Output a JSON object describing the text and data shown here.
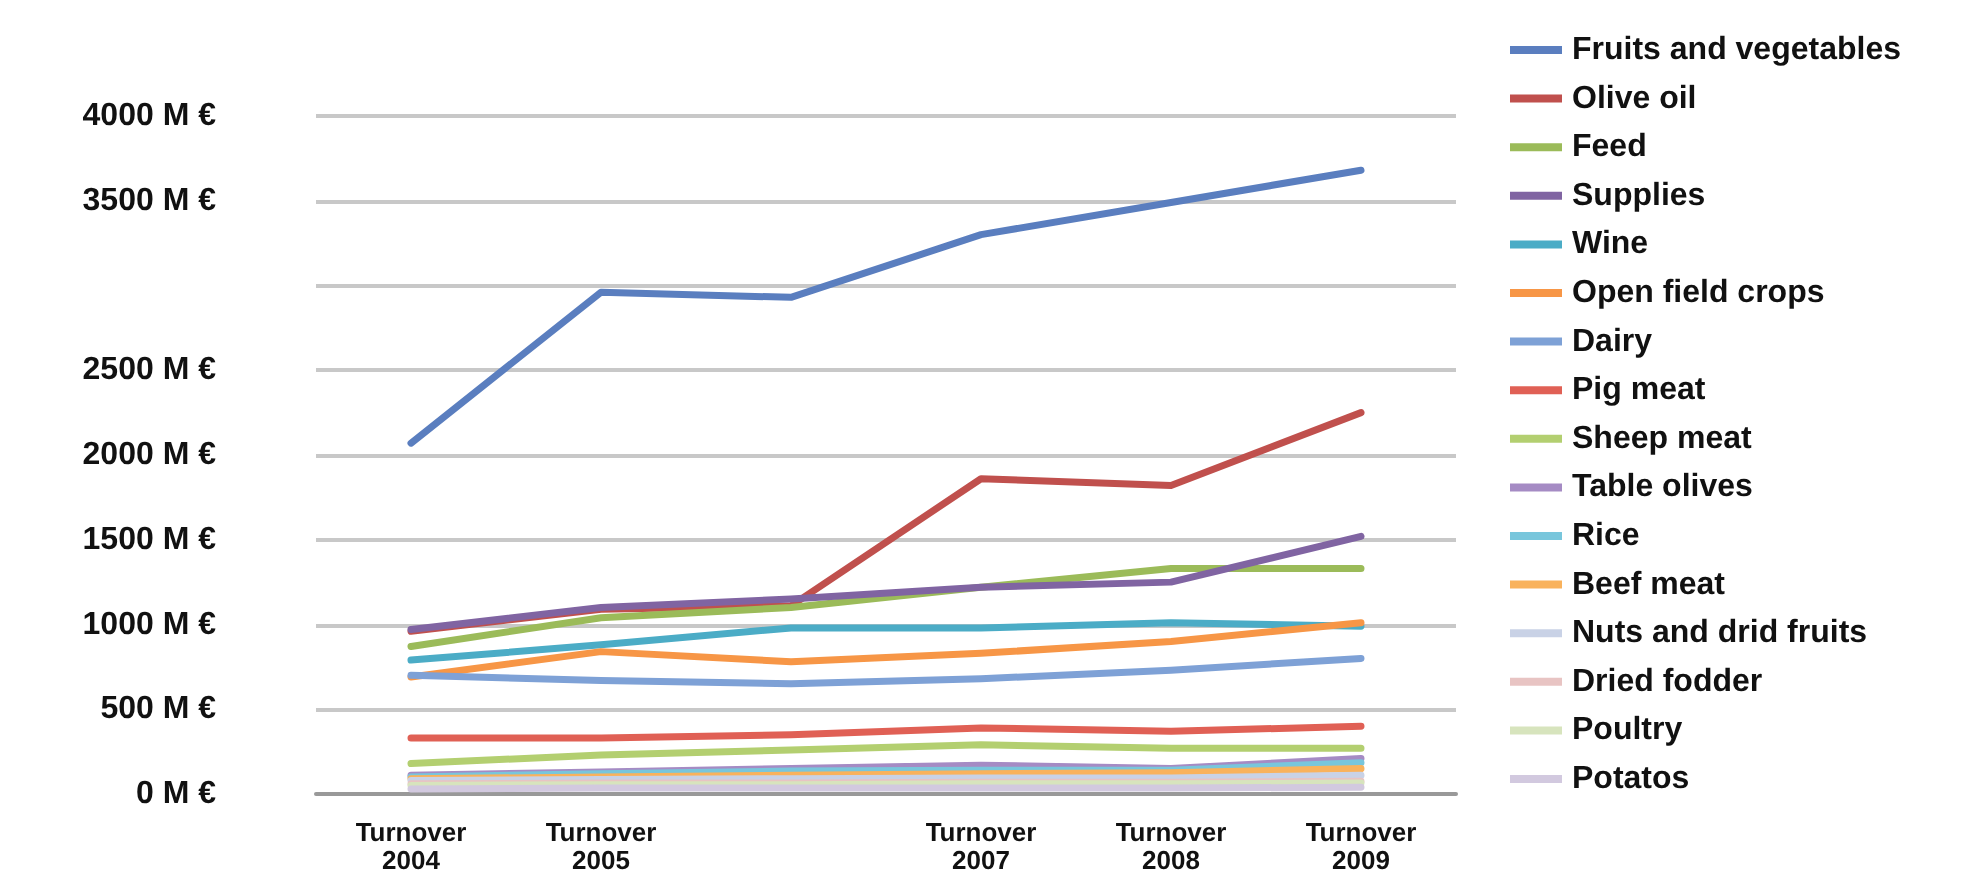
{
  "chart_data": {
    "type": "line",
    "categories": [
      "Turnover\n2004",
      "Turnover\n2005",
      null,
      "Turnover\n2007",
      "Turnover\n2008",
      "Turnover\n2009"
    ],
    "ylim": [
      0,
      4000
    ],
    "yticks": [
      {
        "value": 0,
        "label": "0 M €"
      },
      {
        "value": 500,
        "label": "500 M €"
      },
      {
        "value": 1000,
        "label": "1000 M €"
      },
      {
        "value": 1500,
        "label": "1500 M €"
      },
      {
        "value": 2000,
        "label": "2000 M €"
      },
      {
        "value": 2500,
        "label": "2500 M €"
      },
      {
        "value": 3000,
        "label": null
      },
      {
        "value": 3500,
        "label": "3500 M €"
      },
      {
        "value": 4000,
        "label": "4000 M €"
      }
    ],
    "grid": "y",
    "legend": "right",
    "marker": "none",
    "line_style": "solid",
    "series": [
      {
        "name": "Fruits and vegetables",
        "color": "#5a7ebf",
        "values": [
          2070,
          2960,
          2930,
          3300,
          3490,
          3680
        ]
      },
      {
        "name": "Olive oil",
        "color": "#c0504d",
        "values": [
          960,
          1090,
          1110,
          1860,
          1820,
          2250
        ]
      },
      {
        "name": "Feed",
        "color": "#9bbb59",
        "values": [
          870,
          1040,
          1100,
          1220,
          1330,
          1330
        ]
      },
      {
        "name": "Supplies",
        "color": "#8064a2",
        "values": [
          970,
          1100,
          1150,
          1220,
          1250,
          1520
        ]
      },
      {
        "name": "Wine",
        "color": "#4bacc6",
        "values": [
          790,
          880,
          980,
          980,
          1010,
          990
        ]
      },
      {
        "name": "Open field crops",
        "color": "#f79646",
        "values": [
          690,
          840,
          780,
          830,
          900,
          1010
        ]
      },
      {
        "name": "Dairy",
        "color": "#7ea1d6",
        "values": [
          700,
          670,
          650,
          680,
          730,
          800
        ]
      },
      {
        "name": "Pig meat",
        "color": "#e06055",
        "values": [
          330,
          330,
          350,
          390,
          370,
          400
        ]
      },
      {
        "name": "Sheep meat",
        "color": "#b3cf70",
        "values": [
          180,
          230,
          260,
          290,
          270,
          270
        ]
      },
      {
        "name": "Table olives",
        "color": "#a58bc4",
        "values": [
          110,
          130,
          150,
          170,
          150,
          210
        ]
      },
      {
        "name": "Rice",
        "color": "#78c6dc",
        "values": [
          100,
          120,
          135,
          140,
          140,
          185
        ]
      },
      {
        "name": "Beef meat",
        "color": "#f9b25c",
        "values": [
          90,
          100,
          110,
          120,
          125,
          150
        ]
      },
      {
        "name": "Nuts and drid fruits",
        "color": "#c9d2e6",
        "values": [
          80,
          85,
          90,
          95,
          95,
          110
        ]
      },
      {
        "name": "Dried fodder",
        "color": "#e8c4c3",
        "values": [
          60,
          65,
          65,
          70,
          70,
          75
        ]
      },
      {
        "name": "Poultry",
        "color": "#d7e4bd",
        "values": [
          50,
          55,
          55,
          60,
          60,
          65
        ]
      },
      {
        "name": "Potatos",
        "color": "#d2c9df",
        "values": [
          30,
          35,
          35,
          35,
          35,
          40
        ]
      }
    ]
  }
}
